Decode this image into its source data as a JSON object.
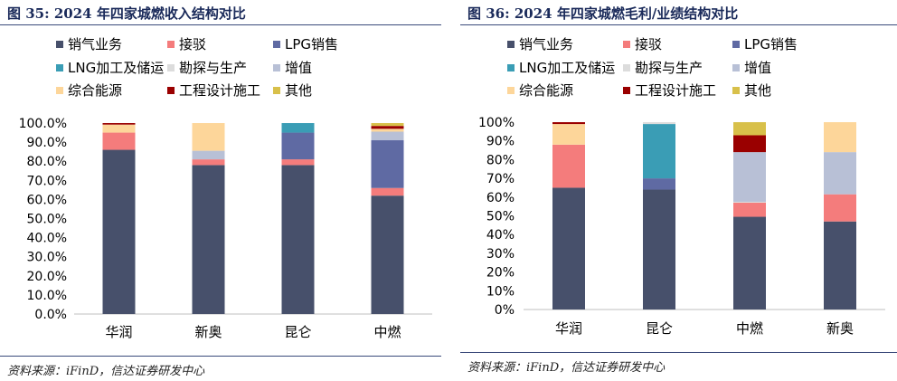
{
  "colors": {
    "销气业务": "#47506b",
    "接驳": "#f47c7c",
    "LPG销售": "#5f6aa3",
    "LNG加工及储运": "#3a9db5",
    "勘探与生产": "#dcdcdc",
    "增值": "#b8c0d6",
    "综合能源": "#fdd69a",
    "工程设计施工": "#9a0000",
    "其他": "#d8c04a"
  },
  "charts": [
    {
      "figure_title": "图 35:   2024 年四家城燃收入结构对比",
      "source": "资料来源：iFinD，信达证券研发中心"
    },
    {
      "figure_title": "图 36:   2024 年四家城燃毛利/业绩结构对比",
      "source": "资料来源：iFinD，信达证券研发中心"
    }
  ],
  "chart_data": [
    {
      "type": "bar",
      "stacked": true,
      "categories": [
        "华润",
        "新奥",
        "昆仑",
        "中燃"
      ],
      "ylim": [
        0,
        100
      ],
      "yticks": [
        "0.0%",
        "10.0%",
        "20.0%",
        "30.0%",
        "40.0%",
        "50.0%",
        "60.0%",
        "70.0%",
        "80.0%",
        "90.0%",
        "100.0%"
      ],
      "legend": [
        "销气业务",
        "接驳",
        "LPG销售",
        "LNG加工及储运",
        "勘探与生产",
        "增值",
        "综合能源",
        "工程设计施工",
        "其他"
      ],
      "legend_position": "top",
      "series": [
        {
          "name": "销气业务",
          "values": [
            86,
            78,
            78,
            62
          ]
        },
        {
          "name": "接驳",
          "values": [
            9,
            3,
            3,
            4
          ]
        },
        {
          "name": "LPG销售",
          "values": [
            0,
            0,
            14,
            25
          ]
        },
        {
          "name": "LNG加工及储运",
          "values": [
            0,
            0,
            5,
            0
          ]
        },
        {
          "name": "勘探与生产",
          "values": [
            0,
            0,
            0,
            0
          ]
        },
        {
          "name": "增值",
          "values": [
            0,
            4.5,
            0,
            4.5
          ]
        },
        {
          "name": "综合能源",
          "values": [
            4.2,
            14.5,
            0,
            1.5
          ]
        },
        {
          "name": "工程设计施工",
          "values": [
            0.8,
            0,
            0,
            1.5
          ]
        },
        {
          "name": "其他",
          "values": [
            0,
            0,
            0,
            1.5
          ]
        }
      ]
    },
    {
      "type": "bar",
      "stacked": true,
      "categories": [
        "华润",
        "昆仑",
        "中燃",
        "新奥"
      ],
      "ylim": [
        0,
        100
      ],
      "yticks": [
        "0%",
        "10%",
        "20%",
        "30%",
        "40%",
        "50%",
        "60%",
        "70%",
        "80%",
        "90%",
        "100%"
      ],
      "legend": [
        "销气业务",
        "接驳",
        "LPG销售",
        "LNG加工及储运",
        "勘探与生产",
        "增值",
        "综合能源",
        "工程设计施工",
        "其他"
      ],
      "legend_position": "top",
      "series": [
        {
          "name": "销气业务",
          "values": [
            65,
            64,
            49.5,
            47
          ]
        },
        {
          "name": "接驳",
          "values": [
            23,
            0,
            7.5,
            14.5
          ]
        },
        {
          "name": "LPG销售",
          "values": [
            0,
            6,
            0,
            0
          ]
        },
        {
          "name": "LNG加工及储运",
          "values": [
            0,
            29,
            0,
            0
          ]
        },
        {
          "name": "勘探与生产",
          "values": [
            0,
            1,
            0.5,
            0
          ]
        },
        {
          "name": "增值",
          "values": [
            0,
            0,
            26.5,
            22.5
          ]
        },
        {
          "name": "综合能源",
          "values": [
            11,
            0,
            0,
            16
          ]
        },
        {
          "name": "工程设计施工",
          "values": [
            1,
            0,
            9,
            0
          ]
        },
        {
          "name": "其他",
          "values": [
            0,
            0,
            7,
            0
          ]
        }
      ]
    }
  ]
}
